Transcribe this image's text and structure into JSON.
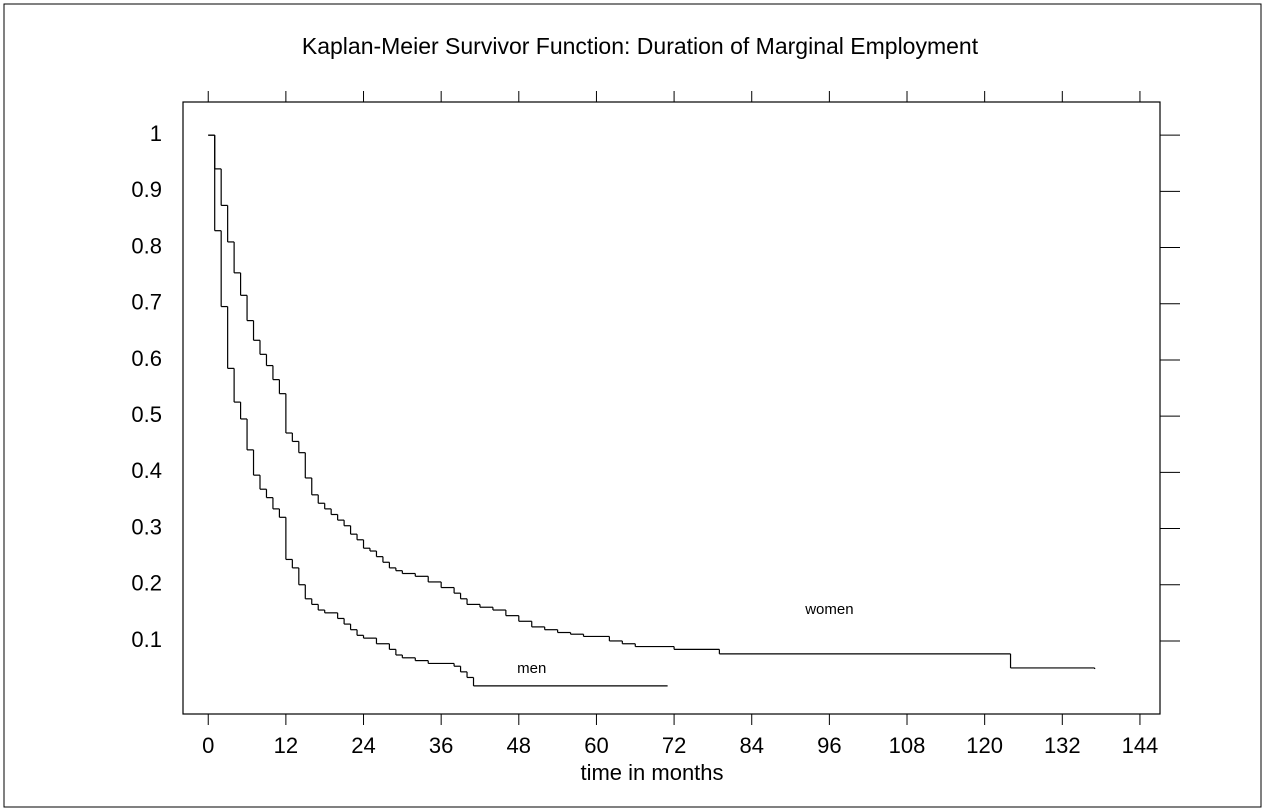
{
  "chart_data": {
    "type": "step",
    "title": "Kaplan-Meier Survivor Function: Duration of Marginal Employment",
    "x_label": "time in months",
    "xlim": [
      -3.9,
      147.1
    ],
    "ylim": [
      -0.03,
      1.059
    ],
    "xticks": [
      0,
      12,
      24,
      36,
      48,
      60,
      72,
      84,
      96,
      108,
      120,
      132,
      144
    ],
    "yticks": [
      0.1,
      0.2,
      0.3,
      0.4,
      0.5,
      0.6,
      0.7,
      0.8,
      0.9,
      1
    ],
    "color": "#000000",
    "series": [
      {
        "name": "women",
        "x": [
          0,
          1,
          2,
          3,
          4,
          5,
          6,
          7,
          8,
          9,
          10,
          11,
          12,
          13,
          14,
          15,
          16,
          17,
          18,
          19,
          20,
          21,
          22,
          23,
          24,
          25,
          26,
          27,
          28,
          29,
          30,
          32,
          34,
          36,
          38,
          39,
          40,
          42,
          44,
          46,
          48,
          50,
          52,
          54,
          56,
          58,
          62,
          64,
          66,
          72,
          79,
          124,
          137
        ],
        "values": [
          1,
          0.94,
          0.875,
          0.81,
          0.755,
          0.715,
          0.67,
          0.635,
          0.61,
          0.59,
          0.565,
          0.54,
          0.47,
          0.455,
          0.435,
          0.39,
          0.36,
          0.345,
          0.335,
          0.325,
          0.315,
          0.305,
          0.29,
          0.28,
          0.265,
          0.26,
          0.25,
          0.24,
          0.23,
          0.225,
          0.22,
          0.215,
          0.205,
          0.195,
          0.185,
          0.175,
          0.165,
          0.16,
          0.155,
          0.145,
          0.135,
          0.125,
          0.12,
          0.115,
          0.112,
          0.108,
          0.1,
          0.095,
          0.09,
          0.085,
          0.077,
          0.052,
          0.05
        ]
      },
      {
        "name": "men",
        "x": [
          0,
          1,
          2,
          3,
          4,
          5,
          6,
          7,
          8,
          9,
          10,
          11,
          12,
          13,
          14,
          15,
          16,
          17,
          18,
          20,
          21,
          22,
          23,
          24,
          26,
          28,
          29,
          30,
          32,
          34,
          38,
          39,
          40,
          41,
          71
        ],
        "values": [
          1,
          0.83,
          0.695,
          0.585,
          0.525,
          0.495,
          0.44,
          0.395,
          0.37,
          0.355,
          0.335,
          0.32,
          0.245,
          0.23,
          0.2,
          0.175,
          0.165,
          0.155,
          0.15,
          0.14,
          0.13,
          0.12,
          0.11,
          0.105,
          0.095,
          0.085,
          0.075,
          0.07,
          0.065,
          0.06,
          0.055,
          0.045,
          0.035,
          0.02,
          0.02
        ]
      }
    ]
  }
}
